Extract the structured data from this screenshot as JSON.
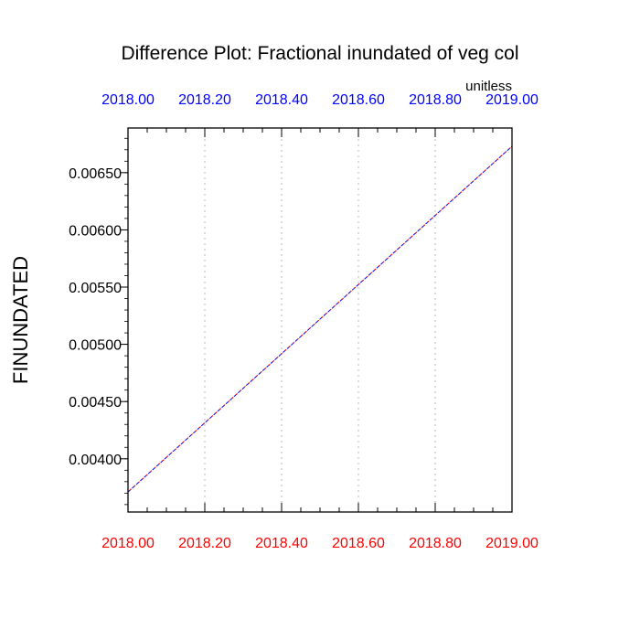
{
  "chart_data": {
    "type": "line",
    "title": "Difference Plot: Fractional inundated of veg col",
    "units": "unitless",
    "ylabel": "FINUNDATED",
    "xlim": [
      2018.0,
      2019.0
    ],
    "ylim": [
      0.003535,
      0.00689
    ],
    "grid": "vertical dashed at x ticks",
    "x_ticks_bottom": [
      "2018.00",
      "2018.20",
      "2018.40",
      "2018.60",
      "2018.80",
      "2019.00"
    ],
    "x_ticks_top": [
      "2018.00",
      "2018.20",
      "2018.40",
      "2018.60",
      "2018.80",
      "2019.00"
    ],
    "y_ticks": [
      "0.00400",
      "0.00450",
      "0.00500",
      "0.00550",
      "0.00600",
      "0.00650"
    ],
    "series": [
      {
        "x": [
          2018.0,
          2019.0
        ],
        "y": [
          0.00371,
          0.00673
        ],
        "color": "#0000ff"
      },
      {
        "x": [
          2018.0,
          2019.0
        ],
        "y": [
          0.00371,
          0.00673
        ],
        "color": "#ff0000"
      }
    ],
    "colors": {
      "top_ticks": "#0000ff",
      "bottom_ticks": "#ff0000",
      "grid": "#bbbbbb"
    }
  }
}
